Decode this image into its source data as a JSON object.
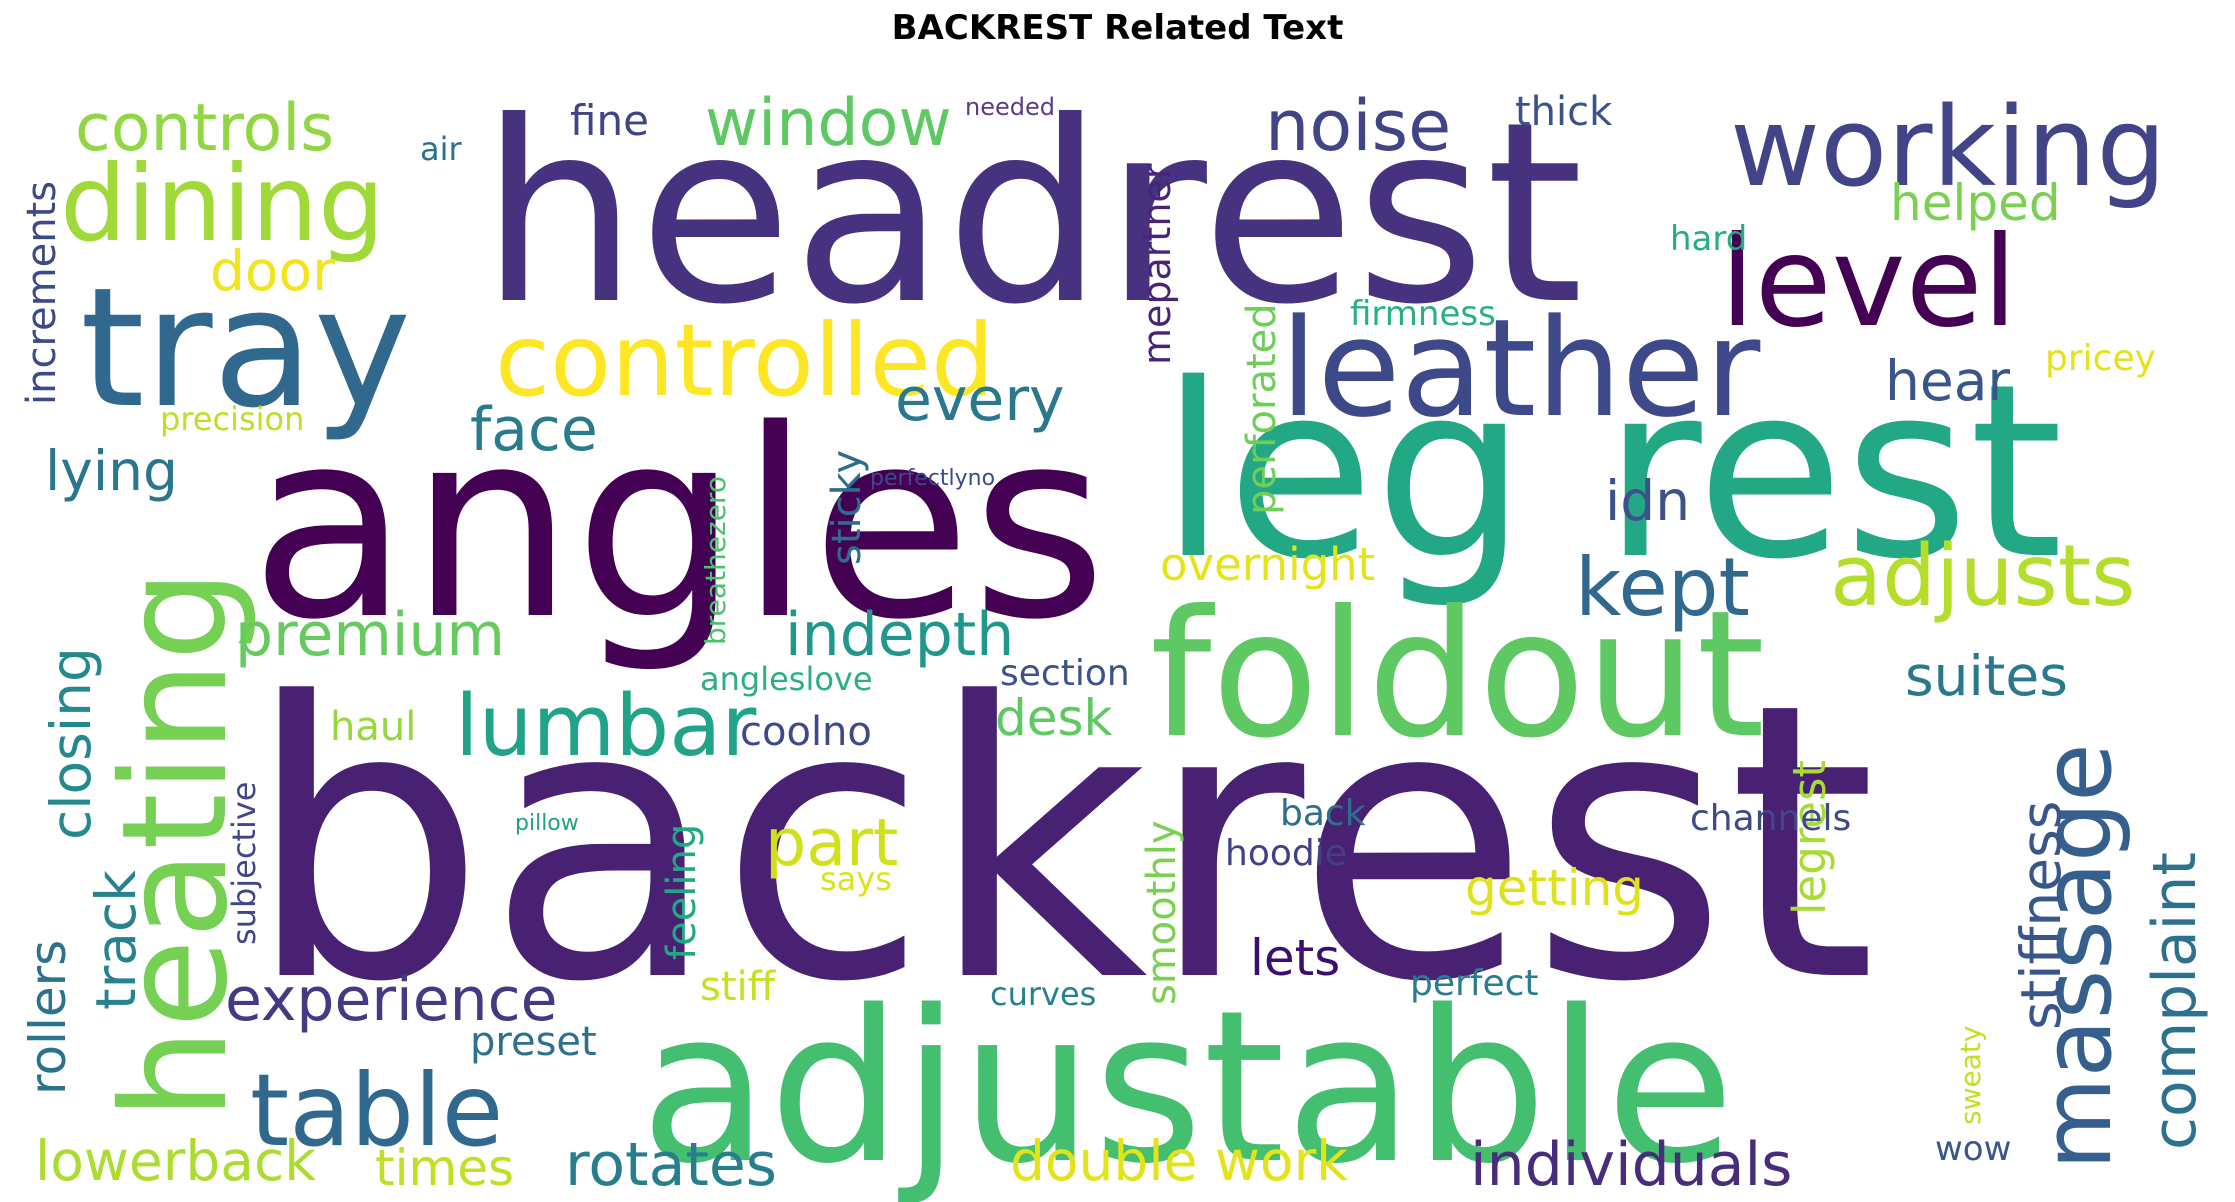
{
  "title": "BACKREST Related Text",
  "words": [
    {
      "text": "backrest",
      "color": "#482173"
    },
    {
      "text": "headrest",
      "color": "#46327e"
    },
    {
      "text": "angles",
      "color": "#440154"
    },
    {
      "text": "adjustable",
      "color": "#44bf70"
    },
    {
      "text": "leg rest",
      "color": "#22a884"
    },
    {
      "text": "foldout",
      "color": "#5ec962"
    },
    {
      "text": "tray",
      "color": "#31688e"
    },
    {
      "text": "heating",
      "color": "#75d054"
    },
    {
      "text": "leather",
      "color": "#3e4989"
    },
    {
      "text": "level",
      "color": "#440154"
    },
    {
      "text": "working",
      "color": "#414487"
    },
    {
      "text": "dining",
      "color": "#a0da39"
    },
    {
      "text": "controlled",
      "color": "#fde725"
    },
    {
      "text": "massage",
      "color": "#355f8d"
    },
    {
      "text": "table",
      "color": "#31688e"
    },
    {
      "text": "adjusts",
      "color": "#b5de2b"
    },
    {
      "text": "lumbar",
      "color": "#20a386"
    },
    {
      "text": "controls",
      "color": "#90d743"
    },
    {
      "text": "window",
      "color": "#5ec962"
    },
    {
      "text": "kept",
      "color": "#31688e"
    },
    {
      "text": "noise",
      "color": "#414487"
    },
    {
      "text": "premium",
      "color": "#65cb5e"
    },
    {
      "text": "indepth",
      "color": "#1f988b"
    },
    {
      "text": "experience",
      "color": "#443983"
    },
    {
      "text": "rotates",
      "color": "#277f8e"
    },
    {
      "text": "complaint",
      "color": "#2c728e"
    },
    {
      "text": "stiffness",
      "color": "#39568c"
    },
    {
      "text": "closing",
      "color": "#23898e"
    },
    {
      "text": "face",
      "color": "#297b8e"
    },
    {
      "text": "every",
      "color": "#2a788e"
    },
    {
      "text": "suites",
      "color": "#2a788e"
    },
    {
      "text": "individuals",
      "color": "#472d7b"
    },
    {
      "text": "part",
      "color": "#d0e11c"
    },
    {
      "text": "lowerback",
      "color": "#addc30"
    },
    {
      "text": "double work",
      "color": "#e2e418"
    },
    {
      "text": "track",
      "color": "#26828e"
    },
    {
      "text": "rollers",
      "color": "#2c728e"
    },
    {
      "text": "legrest",
      "color": "#a8db34"
    },
    {
      "text": "lying",
      "color": "#2a768e"
    },
    {
      "text": "helped",
      "color": "#7ad151"
    },
    {
      "text": "hear",
      "color": "#39568c"
    },
    {
      "text": "door",
      "color": "#f1e51d"
    },
    {
      "text": "desk",
      "color": "#5ec962"
    },
    {
      "text": "times",
      "color": "#c2df23"
    },
    {
      "text": "lets",
      "color": "#3b0f70"
    },
    {
      "text": "getting",
      "color": "#dde318"
    },
    {
      "text": "idn",
      "color": "#3b528b"
    },
    {
      "text": "increments",
      "color": "#3e4989"
    },
    {
      "text": "overnight",
      "color": "#e5e419"
    },
    {
      "text": "perforated",
      "color": "#6ece58"
    },
    {
      "text": "fine",
      "color": "#414487"
    },
    {
      "text": "thick",
      "color": "#3b528b"
    },
    {
      "text": "mepartner",
      "color": "#482475"
    },
    {
      "text": "sticky",
      "color": "#2f6c8e"
    },
    {
      "text": "smoothly",
      "color": "#7ad151"
    },
    {
      "text": "feeling",
      "color": "#22a884"
    },
    {
      "text": "haul",
      "color": "#95d840"
    },
    {
      "text": "preset",
      "color": "#2d718e"
    },
    {
      "text": "channels",
      "color": "#3e4989"
    },
    {
      "text": "hoodie",
      "color": "#424086"
    },
    {
      "text": "section",
      "color": "#3b528b"
    },
    {
      "text": "coolno",
      "color": "#3e4989"
    },
    {
      "text": "back",
      "color": "#2d708e"
    },
    {
      "text": "stiff",
      "color": "#c8e020"
    },
    {
      "text": "perfect",
      "color": "#287d8e"
    },
    {
      "text": "pricey",
      "color": "#e2e418"
    },
    {
      "text": "firmness",
      "color": "#2ab07f"
    },
    {
      "text": "hard",
      "color": "#26ad81"
    },
    {
      "text": "precision",
      "color": "#bddf26"
    },
    {
      "text": "air",
      "color": "#2c728e"
    },
    {
      "text": "subjective",
      "color": "#3f4788"
    },
    {
      "text": "angleslove",
      "color": "#2ab07f"
    },
    {
      "text": "curves",
      "color": "#27808e"
    },
    {
      "text": "says",
      "color": "#dde318"
    },
    {
      "text": "breathezero",
      "color": "#4ac16d"
    },
    {
      "text": "wow",
      "color": "#39568c"
    },
    {
      "text": "sweaty",
      "color": "#c2df23"
    },
    {
      "text": "needed",
      "color": "#5a3a8a"
    },
    {
      "text": "perfectlyno",
      "color": "#3e4989"
    },
    {
      "text": "pillow",
      "color": "#1fa187"
    }
  ]
}
